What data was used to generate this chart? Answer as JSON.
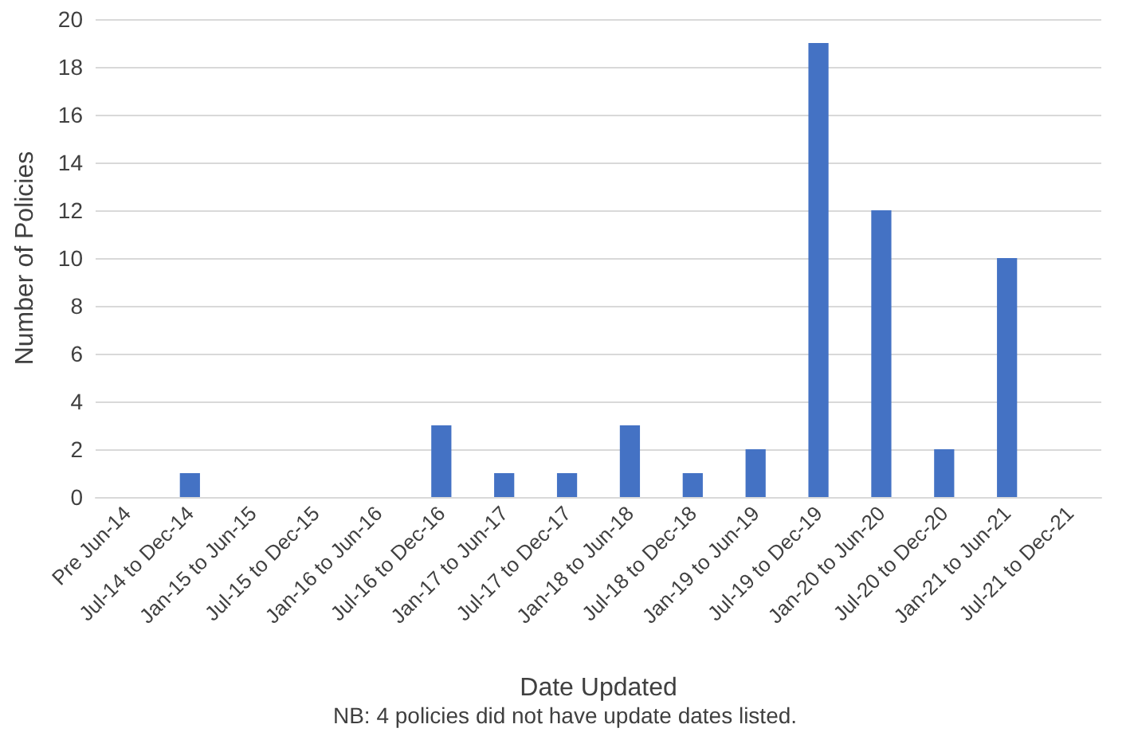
{
  "chart_data": {
    "type": "bar",
    "xlabel": "Date Updated",
    "ylabel": "Number of Policies",
    "categories": [
      "Pre Jun-14",
      "Jul-14 to Dec-14",
      "Jan-15 to Jun-15",
      "Jul-15 to Dec-15",
      "Jan-16 to Jun-16",
      "Jul-16 to Dec-16",
      "Jan-17 to Jun-17",
      "Jul-17 to Dec-17",
      "Jan-18 to Jun-18",
      "Jul-18 to Dec-18",
      "Jan-19 to Jun-19",
      "Jul-19 to Dec-19",
      "Jan-20 to Jun-20",
      "Jul-20 to Dec-20",
      "Jan-21 to Jun-21",
      "Jul-21 to Dec-21"
    ],
    "values": [
      0,
      1,
      0,
      0,
      0,
      3,
      1,
      1,
      3,
      1,
      2,
      19,
      12,
      2,
      10,
      0
    ],
    "color": "#4472c4",
    "ylim": [
      0,
      20
    ],
    "yticks": [
      0,
      2,
      4,
      6,
      8,
      10,
      12,
      14,
      16,
      18,
      20
    ],
    "grid": "y",
    "annotations": [
      "NB: 4 policies did not have update dates listed."
    ]
  }
}
